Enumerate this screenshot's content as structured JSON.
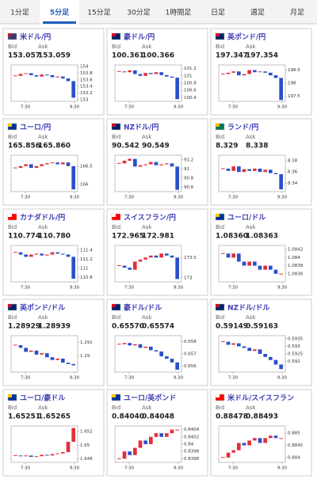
{
  "tabs": [
    "1分足",
    "5分足",
    "15分足",
    "30分足",
    "1時間足",
    "日足",
    "週足",
    "月足"
  ],
  "active_tab": 1,
  "bid_label": "Bid",
  "ask_label": "Ask",
  "xticks": [
    "7:30",
    "9:30"
  ],
  "up_color": "#e0303a",
  "down_color": "#2a4fc9",
  "panels": [
    {
      "name": "米ドル/円",
      "flag": [
        "#3c3b6e",
        "#b22234"
      ],
      "bid": "153.057",
      "ask": "153.059",
      "ylim": [
        152.95,
        154.05
      ],
      "yticks": [
        153,
        153.2,
        153.4,
        153.6,
        153.8,
        154
      ],
      "values": [
        153.72,
        153.78,
        153.8,
        153.74,
        153.7,
        153.76,
        153.74,
        153.68,
        153.7,
        153.64,
        153.56,
        153.06
      ]
    },
    {
      "name": "豪ドル/円",
      "flag": [
        "#012169",
        "#e4002b"
      ],
      "bid": "100.361",
      "ask": "100.366",
      "ylim": [
        100.3,
        101.3
      ],
      "yticks": [
        100.4,
        100.6,
        100.8,
        101,
        101.2
      ],
      "values": [
        101.12,
        101.1,
        101.15,
        101.05,
        101.0,
        101.08,
        101.05,
        101.1,
        101.02,
        100.98,
        100.95,
        100.36
      ]
    },
    {
      "name": "英ポンド/円",
      "flag": [
        "#012169",
        "#c8102e"
      ],
      "bid": "197.347",
      "ask": "197.354",
      "ylim": [
        197.3,
        198.7
      ],
      "yticks": [
        197.5,
        198,
        198.5
      ],
      "values": [
        198.35,
        198.4,
        198.45,
        198.3,
        198.35,
        198.5,
        198.42,
        198.45,
        198.4,
        198.3,
        198.2,
        197.35
      ]
    },
    {
      "name": "ユーロ/円",
      "flag": [
        "#003399",
        "#ffcc00"
      ],
      "bid": "165.856",
      "ask": "165.860",
      "ylim": [
        165.8,
        166.8
      ],
      "yticks": [
        166,
        166.5
      ],
      "values": [
        166.45,
        166.5,
        166.55,
        166.45,
        166.5,
        166.55,
        166.58,
        166.6,
        166.55,
        166.6,
        166.5,
        165.86
      ]
    },
    {
      "name": "NZドル/円",
      "flag": [
        "#012169",
        "#cc142b"
      ],
      "bid": "90.542",
      "ask": "90.549",
      "ylim": [
        90.5,
        91.3
      ],
      "yticks": [
        90.6,
        90.8,
        91,
        91.2
      ],
      "values": [
        91.12,
        91.18,
        91.22,
        91.05,
        91.08,
        91.1,
        91.15,
        91.08,
        91.1,
        91.12,
        91.05,
        90.54
      ]
    },
    {
      "name": "ランド/円",
      "flag": [
        "#007a4d",
        "#ffb612"
      ],
      "bid": "8.329",
      "ask": "8.338",
      "ylim": [
        8.325,
        8.39
      ],
      "yticks": [
        8.34,
        8.36,
        8.38
      ],
      "values": [
        8.366,
        8.362,
        8.37,
        8.36,
        8.365,
        8.362,
        8.366,
        8.36,
        8.364,
        8.358,
        8.356,
        8.329
      ]
    },
    {
      "name": "カナダドル/円",
      "flag": [
        "#ff0000",
        "#ffffff"
      ],
      "bid": "110.774",
      "ask": "110.780",
      "ylim": [
        110.7,
        111.5
      ],
      "yticks": [
        110.8,
        111,
        111.2,
        111.4
      ],
      "values": [
        111.35,
        111.3,
        111.25,
        111.3,
        111.32,
        111.28,
        111.3,
        111.35,
        111.32,
        111.3,
        111.25,
        110.77
      ]
    },
    {
      "name": "スイスフラン/円",
      "flag": [
        "#ff0000",
        "#ffffff"
      ],
      "bid": "172.965",
      "ask": "172.981",
      "ylim": [
        172.9,
        173.8
      ],
      "yticks": [
        173,
        173.5
      ],
      "values": [
        173.3,
        173.25,
        173.2,
        173.4,
        173.45,
        173.5,
        173.55,
        173.5,
        173.6,
        173.55,
        173.5,
        172.97
      ]
    },
    {
      "name": "ユーロ/ドル",
      "flag": [
        "#003399",
        "#ffcc00"
      ],
      "bid": "1.08360",
      "ask": "1.08363",
      "ylim": [
        1.0834,
        1.0843
      ],
      "yticks": [
        1.0836,
        1.0838,
        1.084,
        1.0842
      ],
      "values": [
        1.0841,
        1.084,
        1.0841,
        1.0839,
        1.0838,
        1.0839,
        1.0838,
        1.0837,
        1.0838,
        1.0837,
        1.0836,
        1.0836
      ]
    },
    {
      "name": "英ポンド/ドル",
      "flag": [
        "#012169",
        "#c8102e"
      ],
      "bid": "1.28929",
      "ask": "1.28939",
      "ylim": [
        1.2888,
        1.2915
      ],
      "yticks": [
        1.29,
        1.291
      ],
      "values": [
        1.2908,
        1.2906,
        1.2903,
        1.2904,
        1.2901,
        1.2902,
        1.2899,
        1.2897,
        1.2898,
        1.2895,
        1.2894,
        1.2893
      ]
    },
    {
      "name": "豪ドル/ドル",
      "flag": [
        "#012169",
        "#e4002b"
      ],
      "bid": "0.65570",
      "ask": "0.65574",
      "ylim": [
        0.6555,
        0.6585
      ],
      "yticks": [
        0.656,
        0.657,
        0.658
      ],
      "values": [
        0.6578,
        0.6579,
        0.6577,
        0.6578,
        0.6575,
        0.6576,
        0.6573,
        0.6572,
        0.6568,
        0.6566,
        0.6563,
        0.6557
      ]
    },
    {
      "name": "NZドル/ドル",
      "flag": [
        "#012169",
        "#cc142b"
      ],
      "bid": "0.59149",
      "ask": "0.59163",
      "ylim": [
        0.5913,
        0.5937
      ],
      "yticks": [
        0.592,
        0.5925,
        0.593,
        0.5935
      ],
      "values": [
        0.5933,
        0.5931,
        0.5932,
        0.593,
        0.5929,
        0.5927,
        0.5928,
        0.5925,
        0.5923,
        0.5921,
        0.5918,
        0.5915
      ]
    },
    {
      "name": "ユーロ/豪ドル",
      "flag": [
        "#003399",
        "#ffcc00"
      ],
      "bid": "1.65251",
      "ask": "1.65265",
      "ylim": [
        1.6475,
        1.6528
      ],
      "yticks": [
        1.648,
        1.65,
        1.652
      ],
      "values": [
        1.6485,
        1.6484,
        1.6485,
        1.6483,
        1.6484,
        1.6486,
        1.6485,
        1.6487,
        1.6488,
        1.649,
        1.6505,
        1.6525
      ]
    },
    {
      "name": "ユーロ/英ポンド",
      "flag": [
        "#003399",
        "#ffcc00"
      ],
      "bid": "0.84040",
      "ask": "0.84048",
      "ylim": [
        0.8395,
        0.8405
      ],
      "yticks": [
        0.8396,
        0.8398,
        0.84,
        0.8402,
        0.8404
      ],
      "values": [
        0.8396,
        0.8398,
        0.8397,
        0.8399,
        0.8401,
        0.84,
        0.8402,
        0.8403,
        0.8402,
        0.8403,
        0.8404,
        0.8404
      ]
    },
    {
      "name": "米ドル/スイスフラン",
      "flag": [
        "#ff0000",
        "#ffffff"
      ],
      "bid": "0.88478",
      "ask": "0.88493",
      "ylim": [
        0.8838,
        0.8853
      ],
      "yticks": [
        0.884,
        0.8845,
        0.885
      ],
      "values": [
        0.884,
        0.8842,
        0.8843,
        0.8846,
        0.8845,
        0.8847,
        0.8848,
        0.8846,
        0.8848,
        0.8849,
        0.8848,
        0.8848
      ]
    }
  ]
}
